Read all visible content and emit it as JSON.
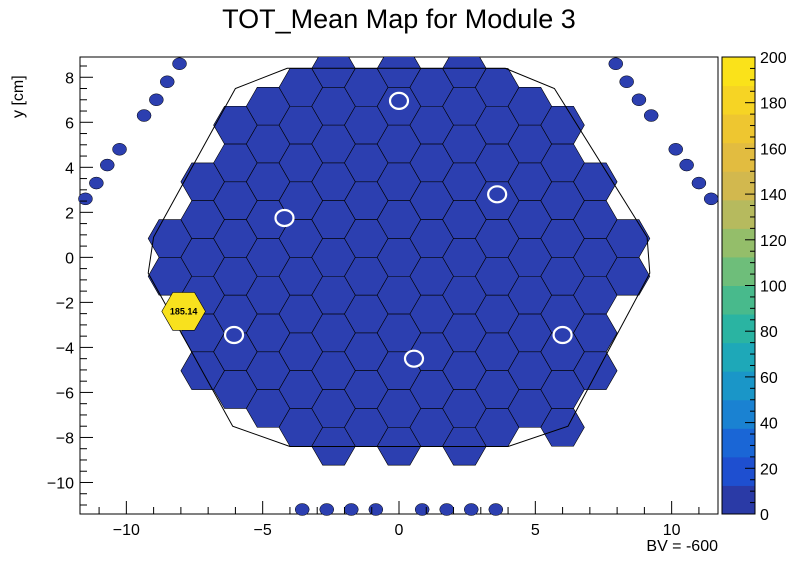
{
  "chart_data": {
    "type": "heatmap",
    "title": "TOT_Mean Map for Module 3",
    "xlabel": "",
    "ylabel": "y [cm]",
    "note": "BV = -600",
    "xlim": [
      -11.7,
      11.7
    ],
    "ylim": [
      -11.4,
      8.9
    ],
    "x_ticks": [
      -10,
      -5,
      0,
      5,
      10
    ],
    "y_ticks": [
      -10,
      -8,
      -6,
      -4,
      -2,
      0,
      2,
      4,
      6,
      8
    ],
    "x_tick_labels": [
      "−10",
      "−5",
      "0",
      "5",
      "10"
    ],
    "y_tick_labels": [
      "−10",
      "−8",
      "−6",
      "−4",
      "−2",
      "0",
      "2",
      "4",
      "6",
      "8"
    ],
    "colorbar": {
      "min": 0,
      "max": 200,
      "ticks": [
        0,
        20,
        40,
        60,
        80,
        100,
        120,
        140,
        160,
        180,
        200
      ],
      "tick_labels": [
        "0",
        "20",
        "40",
        "60",
        "80",
        "100",
        "120",
        "140",
        "160",
        "180",
        "200"
      ]
    },
    "hexagonal_pixel_pitch_cm": 1.2,
    "module_outline": [
      [
        -9.0,
        0.9
      ],
      [
        -6.0,
        7.5
      ],
      [
        -4.1,
        8.4
      ],
      [
        3.9,
        8.4
      ],
      [
        5.7,
        7.5
      ],
      [
        9.1,
        0.9
      ],
      [
        9.2,
        -0.7
      ],
      [
        6.2,
        -7.5
      ],
      [
        4.0,
        -8.4
      ],
      [
        -4.0,
        -8.4
      ],
      [
        -6.1,
        -7.5
      ],
      [
        -9.2,
        -0.7
      ]
    ],
    "default_value": 0,
    "highlighted_cells": [
      {
        "x": -7.9,
        "y": -2.4,
        "value": 185.14,
        "label": "185.14"
      }
    ],
    "calibration_cells": [
      {
        "x": 0.0,
        "y": 6.95
      },
      {
        "x": 3.6,
        "y": 2.8
      },
      {
        "x": -4.2,
        "y": 1.75
      },
      {
        "x": -6.05,
        "y": -3.45
      },
      {
        "x": 6.0,
        "y": -3.45
      },
      {
        "x": 0.55,
        "y": -4.5
      }
    ],
    "outer_points": [
      {
        "x": -8.05,
        "y": 8.6
      },
      {
        "x": -8.5,
        "y": 7.8
      },
      {
        "x": -8.9,
        "y": 7.0
      },
      {
        "x": -9.35,
        "y": 6.3
      },
      {
        "x": -10.25,
        "y": 4.8
      },
      {
        "x": -10.7,
        "y": 4.1
      },
      {
        "x": -11.1,
        "y": 3.3
      },
      {
        "x": -11.5,
        "y": 2.6
      },
      {
        "x": 7.95,
        "y": 8.6
      },
      {
        "x": 8.35,
        "y": 7.8
      },
      {
        "x": 8.8,
        "y": 7.0
      },
      {
        "x": 9.25,
        "y": 6.3
      },
      {
        "x": 10.15,
        "y": 4.8
      },
      {
        "x": 10.55,
        "y": 4.1
      },
      {
        "x": 11.0,
        "y": 3.3
      },
      {
        "x": 11.45,
        "y": 2.6
      },
      {
        "x": -3.55,
        "y": -11.2
      },
      {
        "x": -2.65,
        "y": -11.2
      },
      {
        "x": -1.75,
        "y": -11.2
      },
      {
        "x": -0.85,
        "y": -11.2
      },
      {
        "x": 0.85,
        "y": -11.2
      },
      {
        "x": 1.75,
        "y": -11.2
      },
      {
        "x": 2.65,
        "y": -11.2
      },
      {
        "x": 3.55,
        "y": -11.2
      }
    ],
    "grid": false,
    "legend": "colorbar-right"
  },
  "colors": {
    "cell_fill": "#2c3fb0",
    "outer_point_fill": "#2c3fb0",
    "highlight_fill": "#f8e11e",
    "cell_stroke": "#000000",
    "calibration_ring": "#ffffff",
    "colormap": [
      "#2a3aa6",
      "#1e4fd0",
      "#1a66d6",
      "#1a82d2",
      "#1a96c8",
      "#1ea8b8",
      "#2ab4a2",
      "#48ba8c",
      "#6ebe7a",
      "#94be6a",
      "#b6ba5e",
      "#d2b84e",
      "#e2bc40",
      "#eec630",
      "#f6d424",
      "#fae21a"
    ]
  }
}
